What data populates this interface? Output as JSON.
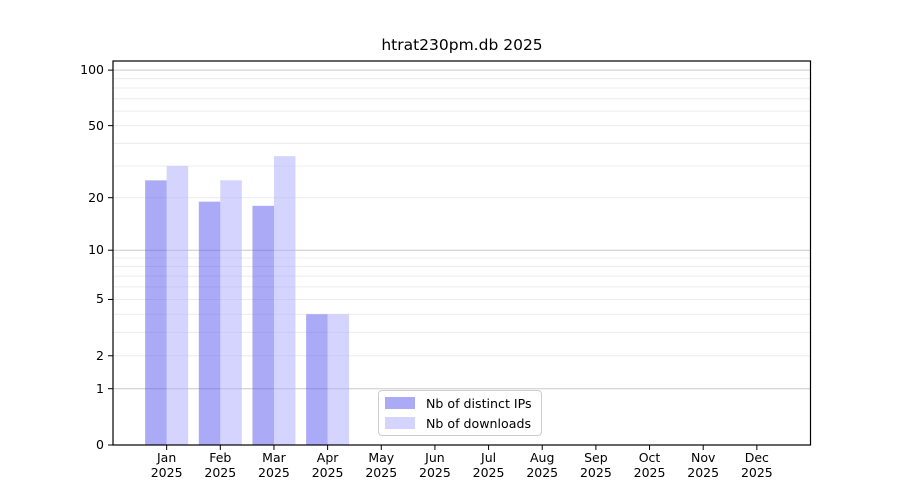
{
  "figure": {
    "background": "#ffffff"
  },
  "chart_data": {
    "type": "bar",
    "title": "htrat230pm.db 2025",
    "categories": [
      "Jan",
      "Feb",
      "Mar",
      "Apr",
      "May",
      "Jun",
      "Jul",
      "Aug",
      "Sep",
      "Oct",
      "Nov",
      "Dec"
    ],
    "year_label": "2025",
    "series": [
      {
        "name": "Nb of distinct IPs",
        "base_color": "#5555ee",
        "alpha": 0.5,
        "rendered_color": "#aaaaf6",
        "values": [
          25,
          19,
          18,
          4,
          0,
          0,
          0,
          0,
          0,
          0,
          0,
          0
        ]
      },
      {
        "name": "Nb of downloads",
        "base_color": "#aaaaff",
        "alpha": 0.5,
        "rendered_color": "#d4d4ff",
        "values": [
          30,
          25,
          34,
          4,
          0,
          0,
          0,
          0,
          0,
          0,
          0,
          0
        ]
      }
    ],
    "xlabel": "",
    "ylabel": "",
    "yscale": "log1p",
    "yticks": [
      100,
      50,
      20,
      10,
      5,
      2,
      1,
      0
    ],
    "ylim": [
      0,
      112
    ],
    "grid": "on",
    "grid_major_values": [
      1,
      10,
      100
    ],
    "grid_minor_values": [
      2,
      3,
      4,
      5,
      6,
      7,
      8,
      9,
      20,
      30,
      40,
      50,
      60,
      70,
      80,
      90
    ],
    "grid_major_color": "#c9c9c9",
    "grid_minor_color": "#ececec",
    "axis_color": "#000000",
    "legend_position": "inside lower-center"
  },
  "legend": {
    "items": [
      {
        "label": "Nb of distinct IPs",
        "swatch_color": "#aaaaf6"
      },
      {
        "label": "Nb of downloads",
        "swatch_color": "#d4d4ff"
      }
    ]
  }
}
